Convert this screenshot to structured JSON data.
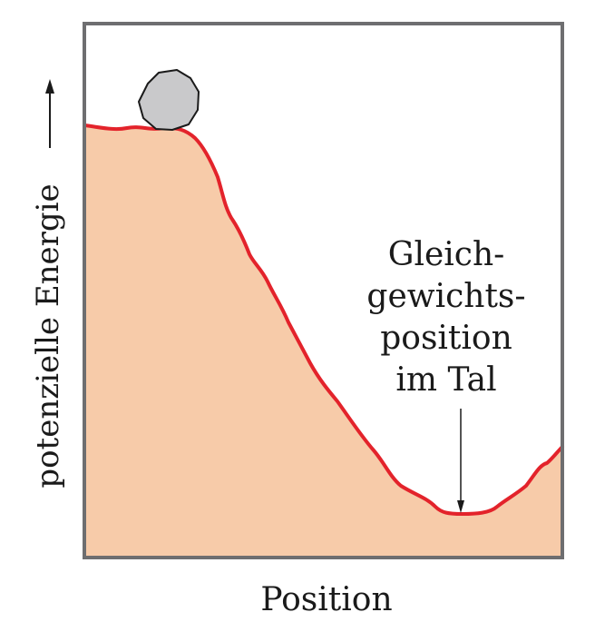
{
  "y_axis_label": "potenzielle Energie",
  "x_axis_label": "Position",
  "annotation_lines": [
    "Gleich-",
    "gewichts-",
    "position",
    "im Tal"
  ],
  "colors": {
    "terrain_fill": "#f7cba9",
    "terrain_edge": "#e3232b",
    "frame": "#6e6e70",
    "boulder_fill": "#c9c9cb",
    "boulder_edge": "#1a1a1a",
    "ink": "#1a1a1a"
  },
  "icons": {
    "boulder": "boulder-icon",
    "y_arrow": "arrow-up-icon",
    "pointer": "arrow-down-icon"
  }
}
